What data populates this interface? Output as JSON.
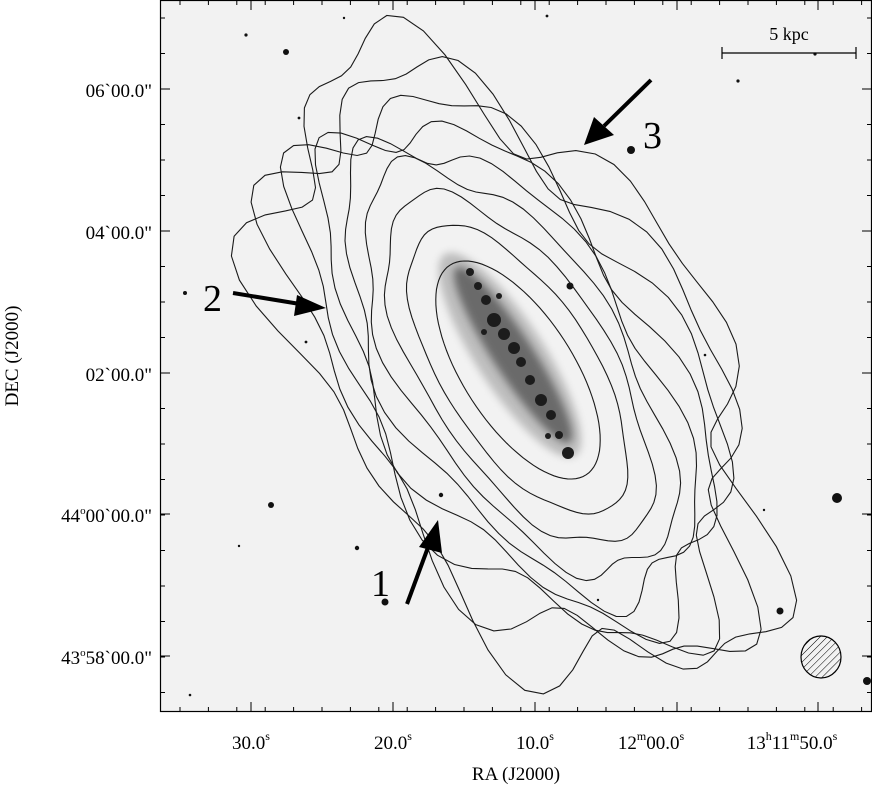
{
  "figure": {
    "x_axis_title": "RA (J2000)",
    "y_axis_title": "DEC (J2000)",
    "scale_bar_label": "5 kpc",
    "y_tick_labels": [
      {
        "deg": "",
        "text": "06`00.0\""
      },
      {
        "deg": "",
        "text": "04`00.0\""
      },
      {
        "deg": "",
        "text": "02`00.0\""
      },
      {
        "deg": "44",
        "text": "00`00.0\""
      },
      {
        "deg": "43",
        "text": "58`00.0\""
      }
    ],
    "x_tick_labels": [
      {
        "main": "30.0",
        "sup": "s"
      },
      {
        "main": "20.0",
        "sup": "s"
      },
      {
        "main": "10.0",
        "sup": "s"
      },
      {
        "main": "12",
        "sup": "m",
        "main2": "00.0",
        "sup2": "s"
      },
      {
        "main": "13",
        "sup": "h",
        "main2": "11",
        "sup2": "m",
        "main3": "50.0",
        "sup3": "s"
      }
    ],
    "arrows": [
      {
        "label": "1"
      },
      {
        "label": "2"
      },
      {
        "label": "3"
      }
    ],
    "colors": {
      "background": "#f2f2f2",
      "contour": "#1a1a1a",
      "galaxy_core": "#1c1c1c",
      "frame": "#000000"
    }
  }
}
